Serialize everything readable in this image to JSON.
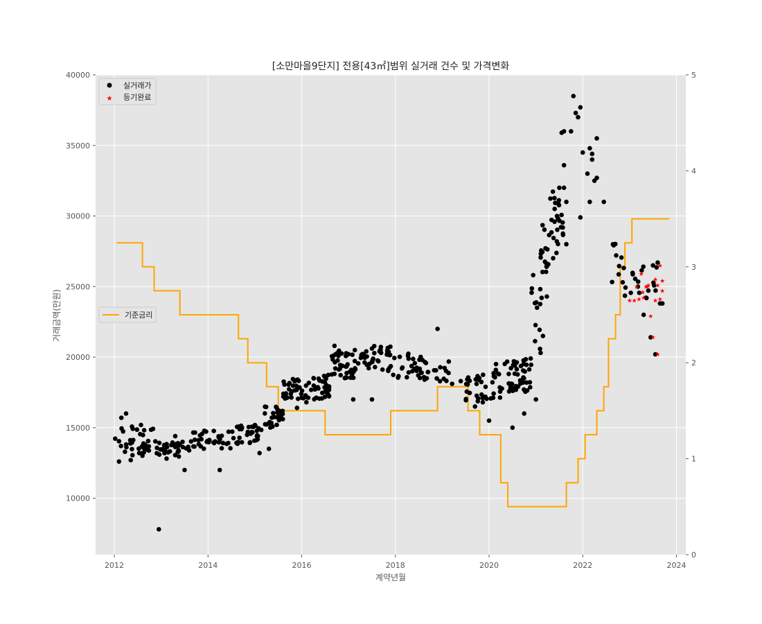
{
  "chart_data": {
    "type": "scatter",
    "title": "[소만마을9단지] 전용[43㎡]범위 실거래 건수 및 가격변화",
    "xlabel": "계약년월",
    "ylabel": "거래금액(만원)",
    "x_ticks": [
      "2012",
      "2014",
      "2016",
      "2018",
      "2020",
      "2022",
      "2024"
    ],
    "y_ticks": [
      "10000",
      "15000",
      "20000",
      "25000",
      "30000",
      "35000",
      "40000"
    ],
    "y2_ticks": [
      "0",
      "1",
      "2",
      "3",
      "4",
      "5"
    ],
    "xlim": [
      2011.6,
      2024.2
    ],
    "ylim": [
      6000,
      40000
    ],
    "y2lim": [
      0,
      5
    ],
    "grid": true,
    "legend_main": {
      "placement": "top-left",
      "entries": [
        {
          "label": "실거래가",
          "color": "#000000",
          "marker": "circle"
        },
        {
          "label": "등기완료",
          "color": "#ff0000",
          "marker": "star"
        }
      ]
    },
    "legend_rate": {
      "placement": "center-left",
      "entries": [
        {
          "label": "기준금리",
          "color": "#ffa500",
          "marker": "line"
        }
      ]
    },
    "series": [
      {
        "name": "실거래가",
        "color": "#000000",
        "marker": "circle",
        "axis": "left",
        "bands": [
          [
            2012.0,
            2012.9,
            13000,
            15200,
            40
          ],
          [
            2012.9,
            2013.6,
            12800,
            14000,
            35
          ],
          [
            2013.6,
            2014.5,
            13500,
            14800,
            35
          ],
          [
            2014.5,
            2015.2,
            13800,
            15200,
            35
          ],
          [
            2015.2,
            2015.6,
            15000,
            16500,
            30
          ],
          [
            2015.6,
            2016.2,
            17000,
            18500,
            35
          ],
          [
            2016.2,
            2016.6,
            17000,
            18800,
            35
          ],
          [
            2016.6,
            2017.2,
            18500,
            20500,
            40
          ],
          [
            2017.2,
            2017.9,
            19000,
            20800,
            40
          ],
          [
            2017.9,
            2018.6,
            18500,
            20300,
            30
          ],
          [
            2018.6,
            2019.5,
            18000,
            19800,
            20
          ],
          [
            2019.5,
            2020.0,
            16800,
            19000,
            25
          ],
          [
            2020.0,
            2020.5,
            17000,
            19800,
            25
          ],
          [
            2020.5,
            2020.9,
            17500,
            20000,
            35
          ],
          [
            2020.9,
            2021.1,
            20000,
            26000,
            12
          ],
          [
            2021.1,
            2021.3,
            24000,
            29500,
            18
          ],
          [
            2021.3,
            2021.6,
            27000,
            32000,
            25
          ],
          [
            2022.6,
            2022.85,
            25000,
            28500,
            8
          ],
          [
            2022.85,
            2023.6,
            24000,
            26500,
            20
          ]
        ],
        "points": [
          [
            2012.1,
            12600
          ],
          [
            2012.15,
            15700
          ],
          [
            2012.25,
            16000
          ],
          [
            2012.35,
            12700
          ],
          [
            2012.6,
            13200
          ],
          [
            2012.95,
            7800
          ],
          [
            2013.3,
            14400
          ],
          [
            2013.5,
            12000
          ],
          [
            2014.25,
            12000
          ],
          [
            2015.1,
            13200
          ],
          [
            2015.3,
            13500
          ],
          [
            2015.9,
            16400
          ],
          [
            2016.1,
            16800
          ],
          [
            2016.7,
            20800
          ],
          [
            2017.1,
            17000
          ],
          [
            2017.5,
            17000
          ],
          [
            2018.9,
            22000
          ],
          [
            2019.7,
            16500
          ],
          [
            2020.0,
            15500
          ],
          [
            2020.5,
            15000
          ],
          [
            2020.75,
            16000
          ],
          [
            2021.0,
            17000
          ],
          [
            2021.1,
            20300
          ],
          [
            2021.15,
            21500
          ],
          [
            2021.4,
            30500
          ],
          [
            2021.45,
            30000
          ],
          [
            2021.5,
            32000
          ],
          [
            2021.6,
            32000
          ],
          [
            2021.55,
            35900
          ],
          [
            2021.6,
            36000
          ],
          [
            2021.6,
            33600
          ],
          [
            2021.65,
            31000
          ],
          [
            2021.65,
            28000
          ],
          [
            2021.75,
            36000
          ],
          [
            2021.8,
            38500
          ],
          [
            2021.85,
            37300
          ],
          [
            2021.95,
            37700
          ],
          [
            2021.9,
            37000
          ],
          [
            2021.95,
            29900
          ],
          [
            2022.0,
            34500
          ],
          [
            2022.1,
            33000
          ],
          [
            2022.15,
            34800
          ],
          [
            2022.15,
            31000
          ],
          [
            2022.2,
            34400
          ],
          [
            2022.2,
            34000
          ],
          [
            2022.25,
            32500
          ],
          [
            2022.3,
            35500
          ],
          [
            2022.3,
            32700
          ],
          [
            2022.45,
            31000
          ],
          [
            2023.45,
            21400
          ],
          [
            2023.55,
            20200
          ],
          [
            2023.6,
            26700
          ],
          [
            2023.65,
            23800
          ],
          [
            2023.7,
            23800
          ],
          [
            2023.3,
            23000
          ],
          [
            2023.5,
            26500
          ]
        ]
      },
      {
        "name": "등기완료",
        "color": "#ff0000",
        "marker": "star",
        "axis": "left",
        "points": [
          [
            2023.0,
            24000
          ],
          [
            2023.1,
            24000
          ],
          [
            2023.15,
            25000
          ],
          [
            2023.2,
            24100
          ],
          [
            2023.25,
            25900
          ],
          [
            2023.3,
            24200
          ],
          [
            2023.35,
            25000
          ],
          [
            2023.4,
            25100
          ],
          [
            2023.45,
            22900
          ],
          [
            2023.5,
            21400
          ],
          [
            2023.55,
            24000
          ],
          [
            2023.55,
            25500
          ],
          [
            2023.6,
            20200
          ],
          [
            2023.6,
            25100
          ],
          [
            2023.65,
            24100
          ],
          [
            2023.65,
            26500
          ],
          [
            2023.7,
            25400
          ],
          [
            2023.7,
            24700
          ],
          [
            2023.38,
            25000
          ],
          [
            2023.28,
            24600
          ]
        ]
      },
      {
        "name": "기준금리",
        "color": "#ffa500",
        "axis": "right",
        "type": "step",
        "steps": [
          [
            2012.05,
            3.25
          ],
          [
            2012.6,
            3.0
          ],
          [
            2012.85,
            2.75
          ],
          [
            2013.4,
            2.5
          ],
          [
            2014.65,
            2.25
          ],
          [
            2014.85,
            2.0
          ],
          [
            2015.25,
            1.75
          ],
          [
            2015.5,
            1.5
          ],
          [
            2016.5,
            1.25
          ],
          [
            2017.9,
            1.5
          ],
          [
            2018.9,
            1.75
          ],
          [
            2019.55,
            1.5
          ],
          [
            2019.8,
            1.25
          ],
          [
            2020.25,
            0.75
          ],
          [
            2020.4,
            0.5
          ],
          [
            2021.65,
            0.75
          ],
          [
            2021.9,
            1.0
          ],
          [
            2022.05,
            1.25
          ],
          [
            2022.3,
            1.5
          ],
          [
            2022.45,
            1.75
          ],
          [
            2022.55,
            2.25
          ],
          [
            2022.7,
            2.5
          ],
          [
            2022.8,
            3.0
          ],
          [
            2022.9,
            3.25
          ],
          [
            2023.05,
            3.5
          ],
          [
            2023.85,
            3.5
          ]
        ]
      }
    ]
  }
}
